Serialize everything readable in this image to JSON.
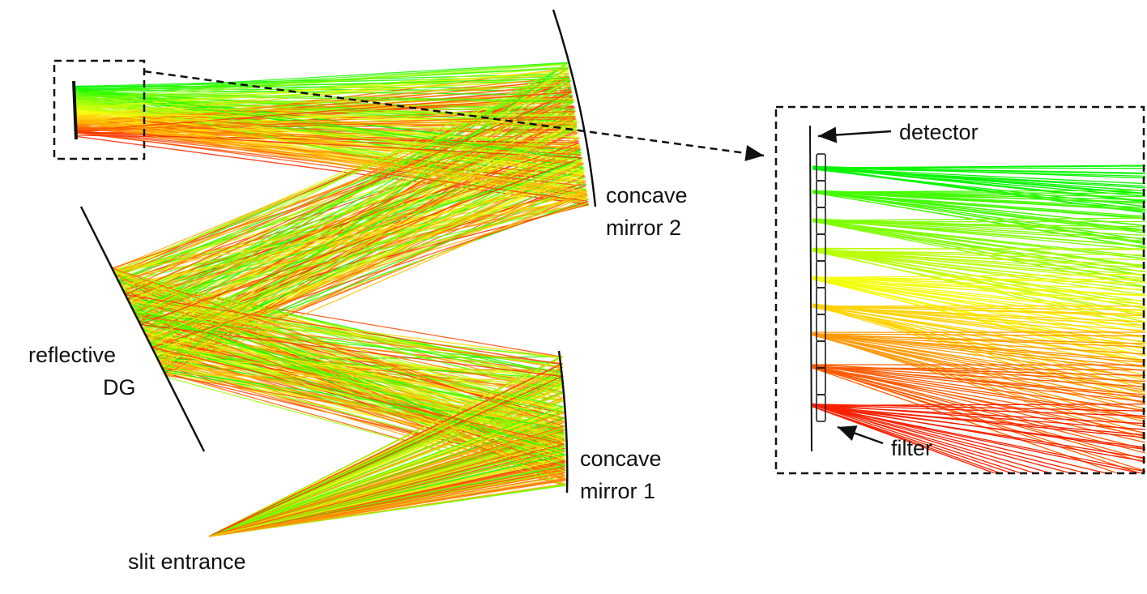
{
  "labels": {
    "detector": "detector",
    "filter": "filter",
    "concave_mirror_2": [
      "concave",
      "mirror 2"
    ],
    "reflective_dg": [
      "reflective",
      "DG"
    ],
    "concave_mirror_1": [
      "concave",
      "mirror 1"
    ],
    "slit_entrance": "slit entrance"
  }
}
